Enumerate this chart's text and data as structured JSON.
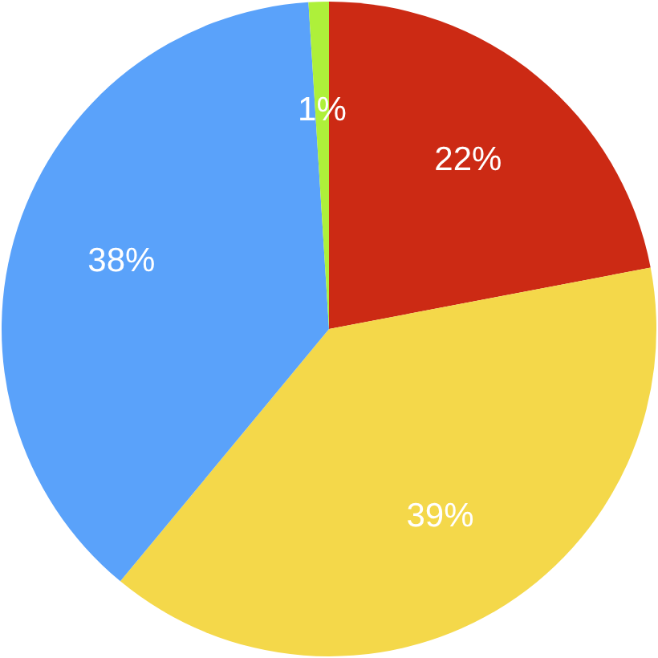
{
  "chart_data": {
    "type": "pie",
    "categories": [
      null,
      null,
      null,
      null
    ],
    "values": [
      22,
      39,
      38,
      1
    ],
    "colors": [
      "#cc2a14",
      "#f4d84a",
      "#5aa2fa",
      "#aef03a"
    ],
    "value_labels": [
      "22%",
      "39%",
      "38%",
      "1%"
    ]
  }
}
